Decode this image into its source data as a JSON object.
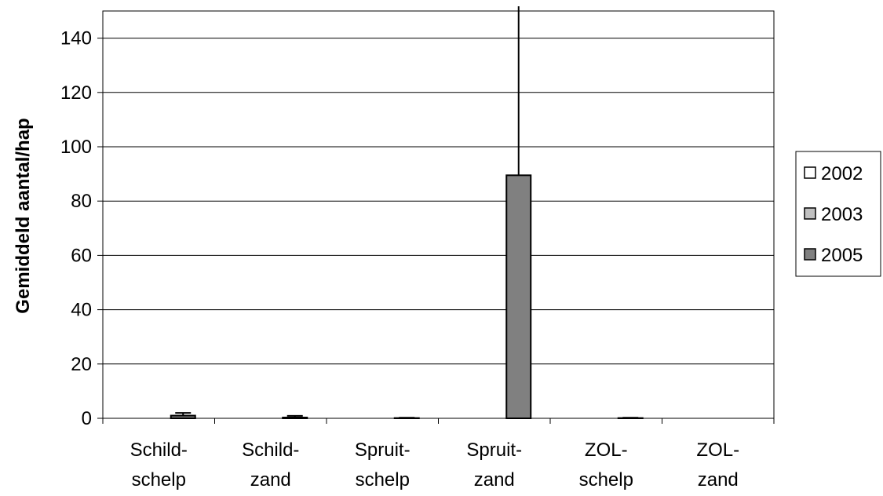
{
  "chart_data": {
    "type": "bar",
    "title": "",
    "xlabel": "",
    "ylabel": "Gemiddeld aantal/hap",
    "ylim": [
      0,
      150
    ],
    "yticks": [
      0,
      20,
      40,
      60,
      80,
      100,
      120,
      140
    ],
    "grid": true,
    "legend_position": "right",
    "categories": [
      [
        "Schild-",
        "schelp"
      ],
      [
        "Schild-",
        "zand"
      ],
      [
        "Spruit-",
        "schelp"
      ],
      [
        "Spruit-",
        "zand"
      ],
      [
        "ZOL-",
        "schelp"
      ],
      [
        "ZOL-",
        "zand"
      ]
    ],
    "series": [
      {
        "name": "2002",
        "color": "#ffffff",
        "values": [
          0,
          0,
          0,
          0,
          0,
          0
        ],
        "error": [
          0,
          0,
          0,
          0,
          0,
          0
        ]
      },
      {
        "name": "2003",
        "color": "#c0c0c0",
        "values": [
          0,
          0,
          0,
          0,
          0,
          0
        ],
        "error": [
          0,
          0,
          0,
          0,
          0,
          0
        ]
      },
      {
        "name": "2005",
        "color": "#808080",
        "values": [
          1,
          0.3,
          0.1,
          89.5,
          0.1,
          0
        ],
        "error": [
          1,
          0.6,
          0.1,
          100,
          0.1,
          0
        ]
      }
    ]
  }
}
